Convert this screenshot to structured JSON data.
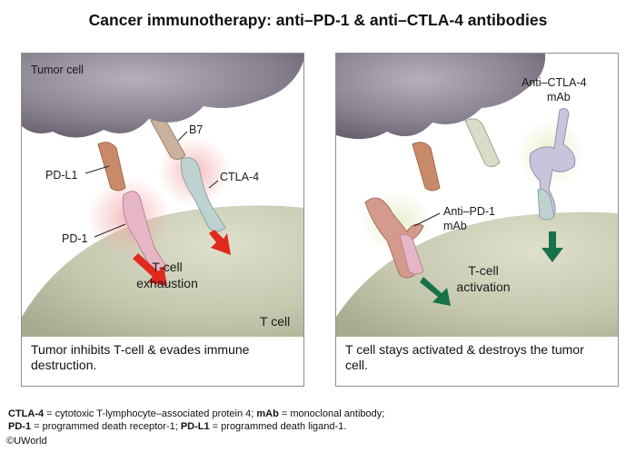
{
  "title": "Cancer immunotherapy: anti–PD-1 & anti–CTLA-4 antibodies",
  "left_panel": {
    "tumor_label": "Tumor cell",
    "b7_label": "B7",
    "pdl1_label": "PD-L1",
    "ctla4_label": "CTLA-4",
    "pd1_label": "PD-1",
    "center_line1": "T-cell",
    "center_line2": "exhaustion",
    "tcell_label": "T cell",
    "caption": "Tumor inhibits T-cell & evades immune destruction."
  },
  "right_panel": {
    "anti_ctla4_line1": "Anti–CTLA-4",
    "anti_ctla4_line2": "mAb",
    "anti_pd1_line1": "Anti–PD-1",
    "anti_pd1_line2": "mAb",
    "center_line1": "T-cell",
    "center_line2": "activation",
    "caption": "T cell stays activated & destroys the tumor cell."
  },
  "footnotes": {
    "line1": [
      {
        "term": "CTLA-4",
        "def": " = cytotoxic T-lymphocyte–associated protein 4; "
      },
      {
        "term": "mAb",
        "def": " = monoclonal antibody;"
      }
    ],
    "line2": [
      {
        "term": "PD-1",
        "def": " = programmed death receptor-1; "
      },
      {
        "term": "PD-L1",
        "def": " = programmed death ligand-1."
      }
    ]
  },
  "copyright": "©UWorld",
  "colors": {
    "tumor": "#8a8392",
    "tcell": "#c9cab2",
    "red_arrow": "#e02a20",
    "green_arrow": "#17724a",
    "protein_tan": "#c98a6a",
    "protein_blue": "#bfd2d2",
    "protein_pink": "#e7b6c6",
    "antibody_lilac": "#c9c4dc"
  }
}
